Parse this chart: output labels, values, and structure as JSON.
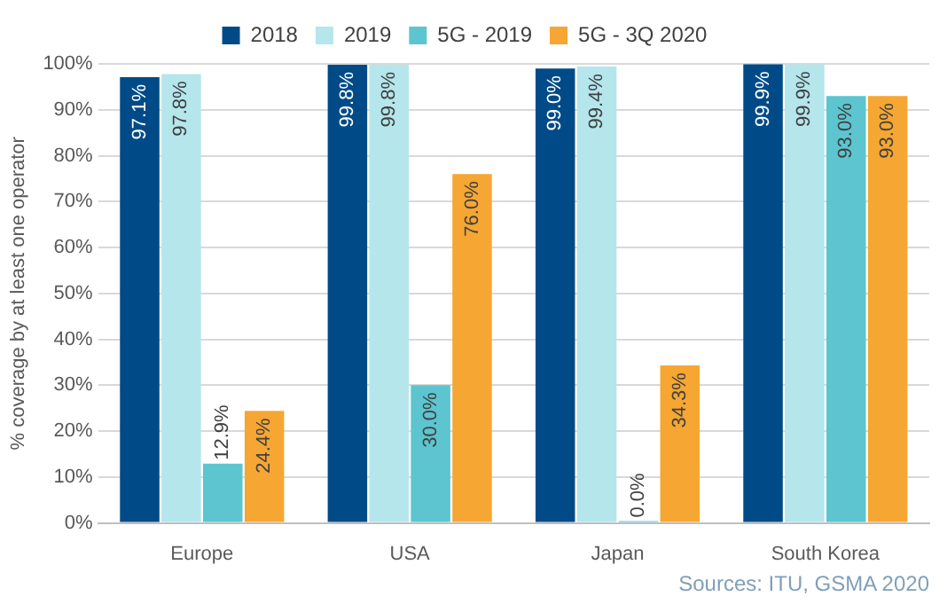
{
  "chart_data": {
    "type": "bar",
    "categories": [
      "Europe",
      "USA",
      "Japan",
      "South Korea"
    ],
    "series": [
      {
        "name": "2018",
        "color": "#004b87",
        "values": [
          97.1,
          99.8,
          99.0,
          99.9
        ],
        "value_labels": [
          "97.1%",
          "99.8%",
          "99.0%",
          "99.9%"
        ]
      },
      {
        "name": "2019",
        "color": "#b4e6ec",
        "values": [
          97.8,
          99.8,
          99.4,
          99.9
        ],
        "value_labels": [
          "97.8%",
          "99.8%",
          "99.4%",
          "99.9%"
        ]
      },
      {
        "name": "5G - 2019",
        "color": "#5cc5cf",
        "values": [
          12.9,
          30.0,
          0.0,
          93.0
        ],
        "value_labels": [
          "12.9%",
          "30.0%",
          "0.0%",
          "93.0%"
        ]
      },
      {
        "name": "5G - 3Q 2020",
        "color": "#f6a632",
        "values": [
          24.4,
          76.0,
          34.3,
          93.0
        ],
        "value_labels": [
          "24.4%",
          "76.0%",
          "34.3%",
          "93.0%"
        ]
      }
    ],
    "ylabel": "% coverage by at least one operator",
    "ylim": [
      0,
      100
    ],
    "yticks": [
      {
        "value": 0,
        "label": "0%"
      },
      {
        "value": 10,
        "label": "10%"
      },
      {
        "value": 20,
        "label": "20%"
      },
      {
        "value": 30,
        "label": "30%"
      },
      {
        "value": 40,
        "label": "40%"
      },
      {
        "value": 50,
        "label": "50%"
      },
      {
        "value": 60,
        "label": "60%"
      },
      {
        "value": 70,
        "label": "70%"
      },
      {
        "value": 80,
        "label": "80%"
      },
      {
        "value": 90,
        "label": "90%"
      },
      {
        "value": 100,
        "label": "100%"
      }
    ],
    "grid": "y",
    "legend": "top",
    "annotations": [
      "Sources: ITU, GSMA 2020"
    ]
  }
}
